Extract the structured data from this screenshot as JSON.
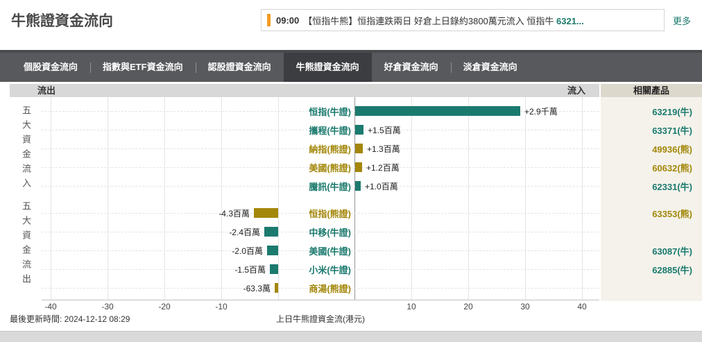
{
  "header": {
    "title": "牛熊證資金流向",
    "news": {
      "time": "09:00",
      "text": "【恒指牛熊】恒指連跌兩日 好倉上日錄約3800萬元流入 恒指牛 ",
      "highlight": "6321...",
      "more_label": "更多"
    }
  },
  "tabs": {
    "items": [
      {
        "label": "個股資金流向",
        "active": false
      },
      {
        "label": "指數與ETF資金流向",
        "active": false
      },
      {
        "label": "認股證資金流向",
        "active": false
      },
      {
        "label": "牛熊證資金流向",
        "active": true
      },
      {
        "label": "好倉資金流向",
        "active": false
      },
      {
        "label": "淡倉資金流向",
        "active": false
      }
    ]
  },
  "band": {
    "outflow_label": "流出",
    "inflow_label": "流入",
    "products_label": "相關產品"
  },
  "chart_data": {
    "type": "bar",
    "orientation": "horizontal",
    "title": "牛熊證資金流向",
    "axis_title": "上日牛熊證資金流(港元)",
    "unit": "百萬港元",
    "x_ticks": [
      -40,
      -30,
      -20,
      -10,
      10,
      20,
      30,
      40
    ],
    "xlim": [
      -41.5,
      43
    ],
    "grid": true,
    "group_in_label": "五大資金流入",
    "group_out_label": "五大資金流出",
    "colors": {
      "bull": "#1B7A6E",
      "bear": "#A3870A"
    },
    "rows": [
      {
        "name": "恒指(牛證)",
        "type": "bull",
        "value_millions": 29,
        "value_label": "+2.9千萬",
        "product": "63219(牛)",
        "product_type": "bull",
        "group": "inflow"
      },
      {
        "name": "攜程(牛證)",
        "type": "bull",
        "value_millions": 1.5,
        "value_label": "+1.5百萬",
        "product": "63371(牛)",
        "product_type": "bull",
        "group": "inflow"
      },
      {
        "name": "納指(熊證)",
        "type": "bear",
        "value_millions": 1.3,
        "value_label": "+1.3百萬",
        "product": "49936(熊)",
        "product_type": "bear",
        "group": "inflow"
      },
      {
        "name": "美國(熊證)",
        "type": "bear",
        "value_millions": 1.2,
        "value_label": "+1.2百萬",
        "product": "60632(熊)",
        "product_type": "bear",
        "group": "inflow"
      },
      {
        "name": "騰訊(牛證)",
        "type": "bull",
        "value_millions": 1.0,
        "value_label": "+1.0百萬",
        "product": "62331(牛)",
        "product_type": "bull",
        "group": "inflow"
      },
      {
        "name": "恒指(熊證)",
        "type": "bear",
        "value_millions": -4.3,
        "value_label": "-4.3百萬",
        "product": "63353(熊)",
        "product_type": "bear",
        "group": "outflow"
      },
      {
        "name": "中移(牛證)",
        "type": "bull",
        "value_millions": -2.4,
        "value_label": "-2.4百萬",
        "product": "",
        "product_type": "bull",
        "group": "outflow"
      },
      {
        "name": "美國(牛證)",
        "type": "bull",
        "value_millions": -2.0,
        "value_label": "-2.0百萬",
        "product": "63087(牛)",
        "product_type": "bull",
        "group": "outflow"
      },
      {
        "name": "小米(牛證)",
        "type": "bull",
        "value_millions": -1.5,
        "value_label": "-1.5百萬",
        "product": "62885(牛)",
        "product_type": "bull",
        "group": "outflow"
      },
      {
        "name": "商湯(熊證)",
        "type": "bear",
        "value_millions": -0.633,
        "value_label": "-63.3萬",
        "product": "",
        "product_type": "bear",
        "group": "outflow"
      }
    ]
  },
  "footer": {
    "updated_label": "最後更新時間: 2024-12-12 08:29"
  }
}
